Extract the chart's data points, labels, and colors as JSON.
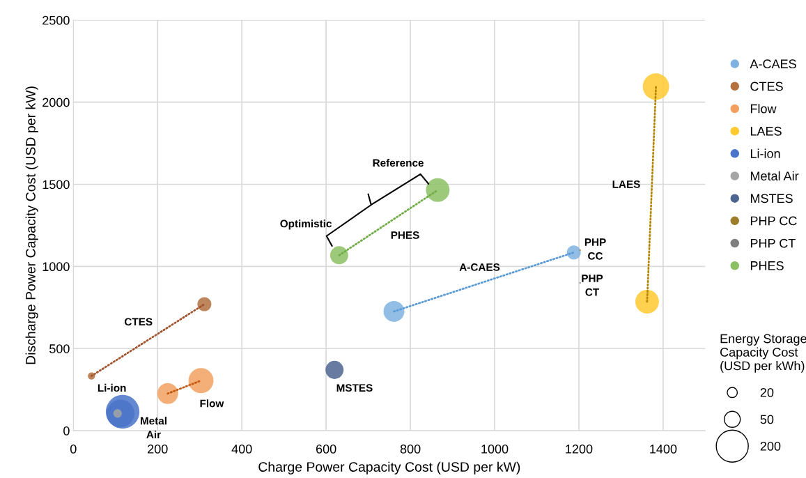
{
  "chart_data": {
    "type": "bubble",
    "xlabel": "Charge Power Capacity Cost (USD per kW)",
    "ylabel": "Discharge Power Capacity Cost (USD per kW)",
    "xlim": [
      0,
      1500
    ],
    "xticks": [
      0,
      200,
      400,
      600,
      800,
      1000,
      1200,
      1400
    ],
    "ylim": [
      0,
      2500
    ],
    "yticks": [
      0,
      500,
      1000,
      1500,
      2000,
      2500
    ],
    "grid": true,
    "legend": "right",
    "marker": "circle",
    "legend_title": "Energy Storage Capacity Cost (USD per kWh)",
    "size_legend": [
      20,
      50,
      200
    ],
    "series": [
      {
        "name": "A-CAES",
        "color": "#7fb1e0",
        "x": [
          761,
          1188
        ],
        "values": [
          726,
          1085
        ],
        "sizes": [
          85,
          38
        ]
      },
      {
        "name": "CTES",
        "color": "#b3713f",
        "x": [
          43,
          311
        ],
        "values": [
          333,
          770
        ],
        "sizes": [
          10,
          38
        ]
      },
      {
        "name": "Flow",
        "color": "#f2a05f",
        "x": [
          224,
          303
        ],
        "values": [
          226,
          305
        ],
        "sizes": [
          85,
          122
        ]
      },
      {
        "name": "LAES",
        "color": "#ffc930",
        "x": [
          1362,
          1383
        ],
        "values": [
          785,
          2095
        ],
        "sizes": [
          109,
          136
        ]
      },
      {
        "name": "Li-ion",
        "color": "#4a74c9",
        "x": [
          117,
          112
        ],
        "values": [
          115,
          105
        ],
        "sizes": [
          220,
          150
        ]
      },
      {
        "name": "Metal Air",
        "color": "#a5a5a5",
        "x": [
          105
        ],
        "values": [
          105
        ],
        "sizes": [
          14
        ]
      },
      {
        "name": "MSTES",
        "color": "#4e6490",
        "x": [
          620
        ],
        "values": [
          370
        ],
        "sizes": [
          64
        ]
      },
      {
        "name": "PHP CC",
        "color": "#9c7e2a",
        "x": [
          1203
        ],
        "values": [
          1099
        ],
        "sizes": [
          0.5
        ]
      },
      {
        "name": "PHP CT",
        "color": "#7f7f7f",
        "x": [
          1203
        ],
        "values": [
          900
        ],
        "sizes": [
          0.5
        ]
      },
      {
        "name": "PHES",
        "color": "#8cc063",
        "x": [
          631,
          865
        ],
        "values": [
          1068,
          1465
        ],
        "sizes": [
          64,
          109
        ]
      },
      {
        "type": "line",
        "line_style": "dotted",
        "marker": "none",
        "color": "#5b9bd5",
        "x": [
          761,
          1188
        ],
        "values": [
          726,
          1085
        ]
      },
      {
        "type": "line",
        "line_style": "dotted",
        "marker": "none",
        "color": "#a0522d",
        "x": [
          43,
          311
        ],
        "values": [
          333,
          770
        ]
      },
      {
        "type": "line",
        "line_style": "dotted",
        "marker": "none",
        "color": "#c55a11",
        "x": [
          224,
          303
        ],
        "values": [
          226,
          305
        ]
      },
      {
        "type": "line",
        "line_style": "dotted",
        "marker": "none",
        "color": "#b38600",
        "x": [
          1362,
          1383
        ],
        "values": [
          785,
          2095
        ]
      },
      {
        "type": "line",
        "line_style": "dotted",
        "marker": "none",
        "color": "#70ad47",
        "x": [
          631,
          865
        ],
        "values": [
          1068,
          1465
        ]
      }
    ],
    "annotations": [
      "CTES",
      "Li-ion",
      "Metal\nAir",
      "Flow",
      "MSTES",
      "A-CAES",
      "PHP\nCC",
      "PHP\nCT",
      "LAES",
      "PHES",
      "Optimistic",
      "Reference"
    ]
  }
}
